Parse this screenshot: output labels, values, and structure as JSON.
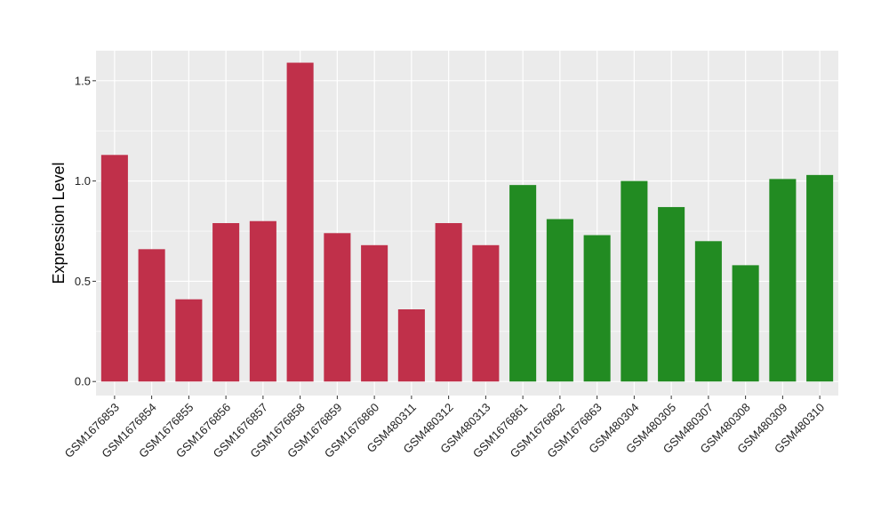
{
  "chart_data": {
    "type": "bar",
    "title": "",
    "xlabel": "",
    "ylabel": "Expression Level",
    "ylim": [
      -0.07,
      1.65
    ],
    "yticks": [
      0.0,
      0.5,
      1.0,
      1.5
    ],
    "ytick_labels": [
      "0.0",
      "0.5",
      "1.0",
      "1.5"
    ],
    "grid": true,
    "legend": "none",
    "categories": [
      "GSM1676853",
      "GSM1676854",
      "GSM1676855",
      "GSM1676856",
      "GSM1676857",
      "GSM1676858",
      "GSM1676859",
      "GSM1676860",
      "GSM480311",
      "GSM480312",
      "GSM480313",
      "GSM1676861",
      "GSM1676862",
      "GSM1676863",
      "GSM480304",
      "GSM480305",
      "GSM480307",
      "GSM480308",
      "GSM480309",
      "GSM480310"
    ],
    "values": [
      1.13,
      0.66,
      0.41,
      0.79,
      0.8,
      1.59,
      0.74,
      0.68,
      0.36,
      0.79,
      0.68,
      0.98,
      0.81,
      0.73,
      1.0,
      0.87,
      0.7,
      0.58,
      1.01,
      1.03
    ],
    "bar_colors": [
      "#c0304a",
      "#c0304a",
      "#c0304a",
      "#c0304a",
      "#c0304a",
      "#c0304a",
      "#c0304a",
      "#c0304a",
      "#c0304a",
      "#c0304a",
      "#c0304a",
      "#228b22",
      "#228b22",
      "#228b22",
      "#228b22",
      "#228b22",
      "#228b22",
      "#228b22",
      "#228b22",
      "#228b22"
    ],
    "colors": {
      "panel_background": "#ebebeb",
      "grid_line": "#ffffff",
      "axis_text": "#222222",
      "tick_mark": "#333333"
    }
  }
}
